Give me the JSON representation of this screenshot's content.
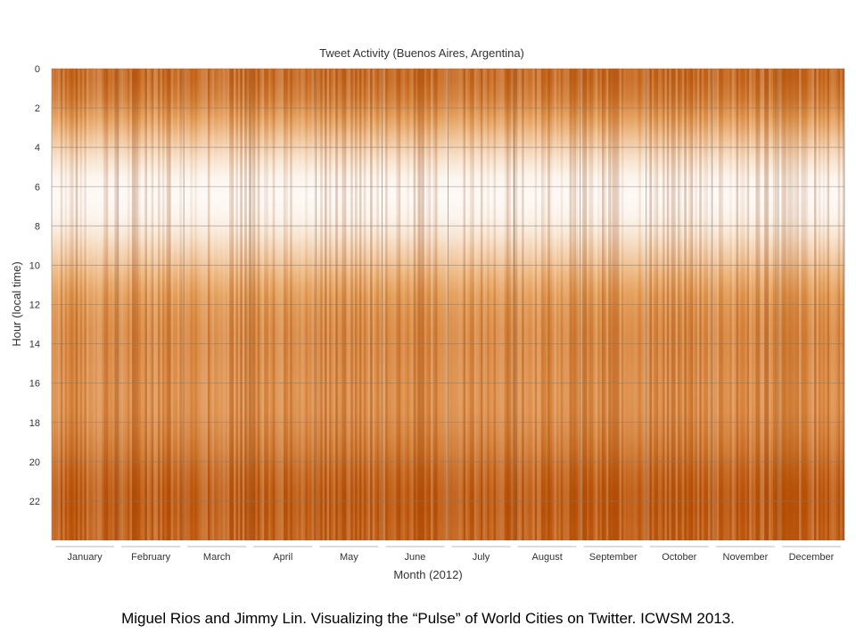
{
  "chart_data": {
    "type": "heatmap",
    "title": "Tweet Activity (Buenos Aires, Argentina)",
    "xlabel": "Month (2012)",
    "ylabel": "Hour (local time)",
    "x_categories": [
      "January",
      "February",
      "March",
      "April",
      "May",
      "June",
      "July",
      "August",
      "September",
      "October",
      "November",
      "December"
    ],
    "y_ticks": [
      0,
      2,
      4,
      6,
      8,
      10,
      12,
      14,
      16,
      18,
      20,
      22
    ],
    "ylim": [
      0,
      24
    ],
    "grid": true,
    "colors": {
      "low": "#ffffff",
      "mid": "#e8a15a",
      "high": "#b84d00",
      "grid": "#7a7a7a"
    },
    "hourly_profile": [
      {
        "hour": 0,
        "activity": 0.85
      },
      {
        "hour": 1,
        "activity": 0.75
      },
      {
        "hour": 2,
        "activity": 0.55
      },
      {
        "hour": 3,
        "activity": 0.35
      },
      {
        "hour": 4,
        "activity": 0.18
      },
      {
        "hour": 5,
        "activity": 0.06
      },
      {
        "hour": 6,
        "activity": 0.03
      },
      {
        "hour": 7,
        "activity": 0.06
      },
      {
        "hour": 8,
        "activity": 0.15
      },
      {
        "hour": 9,
        "activity": 0.28
      },
      {
        "hour": 10,
        "activity": 0.42
      },
      {
        "hour": 11,
        "activity": 0.55
      },
      {
        "hour": 12,
        "activity": 0.62
      },
      {
        "hour": 13,
        "activity": 0.66
      },
      {
        "hour": 14,
        "activity": 0.66
      },
      {
        "hour": 15,
        "activity": 0.64
      },
      {
        "hour": 16,
        "activity": 0.63
      },
      {
        "hour": 17,
        "activity": 0.64
      },
      {
        "hour": 18,
        "activity": 0.7
      },
      {
        "hour": 19,
        "activity": 0.78
      },
      {
        "hour": 20,
        "activity": 0.88
      },
      {
        "hour": 21,
        "activity": 0.94
      },
      {
        "hour": 22,
        "activity": 0.95
      },
      {
        "hour": 23,
        "activity": 0.92
      }
    ]
  },
  "caption": "Miguel Rios and Jimmy Lin. Visualizing the “Pulse” of World Cities on Twitter. ICWSM 2013."
}
